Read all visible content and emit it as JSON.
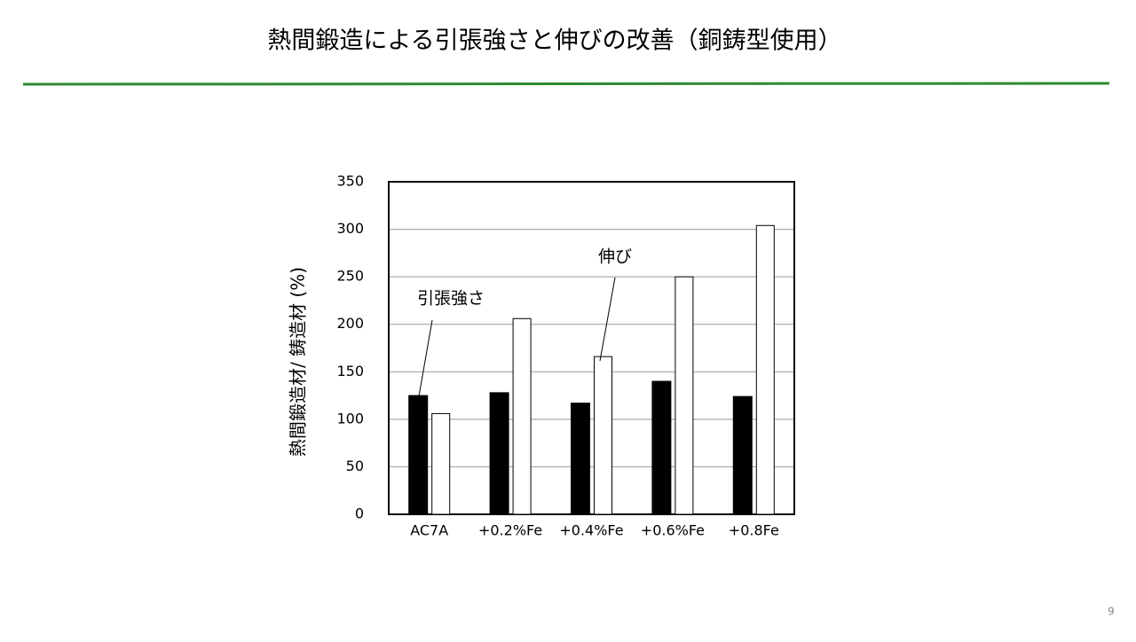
{
  "slide": {
    "title": "熱間鍛造による引張強さと伸びの改善（銅鋳型使用）",
    "page_number": "9"
  },
  "chart_data": {
    "type": "bar",
    "y_label": "熱間鍛造材/ 鋳造材 (%)",
    "categories": [
      "AC7A",
      "+0.2%Fe",
      "+0.4%Fe",
      "+0.6%Fe",
      "+0.8Fe"
    ],
    "series": [
      {
        "name": "引張強さ",
        "color": "#000000",
        "values": [
          125,
          128,
          117,
          140,
          124
        ]
      },
      {
        "name": "伸び",
        "color": "#ffffff",
        "values": [
          106,
          206,
          166,
          250,
          304
        ]
      }
    ],
    "ylim": [
      0,
      350
    ],
    "yticks": [
      0,
      50,
      100,
      150,
      200,
      250,
      300,
      350
    ],
    "grid": true
  }
}
